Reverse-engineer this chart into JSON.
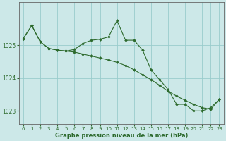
{
  "line1_x": [
    0,
    1,
    2,
    3,
    4,
    5,
    6,
    7,
    8,
    9,
    10,
    11,
    12,
    13,
    14,
    15,
    16,
    17,
    18,
    19,
    20,
    21,
    22,
    23
  ],
  "line1_y": [
    1025.2,
    1025.6,
    1025.1,
    1024.9,
    1024.85,
    1024.82,
    1024.87,
    1025.05,
    1025.15,
    1025.18,
    1025.25,
    1025.75,
    1025.15,
    1025.15,
    1024.85,
    1024.25,
    1023.95,
    1023.65,
    1023.2,
    1023.2,
    1023.0,
    1023.0,
    1023.1,
    1023.35
  ],
  "line2_x": [
    0,
    1,
    2,
    3,
    4,
    5,
    6,
    7,
    8,
    9,
    10,
    11,
    12,
    13,
    14,
    15,
    16,
    17,
    18,
    19,
    20,
    21,
    22,
    23
  ],
  "line2_y": [
    1025.2,
    1025.6,
    1025.1,
    1024.9,
    1024.85,
    1024.82,
    1024.79,
    1024.73,
    1024.67,
    1024.61,
    1024.55,
    1024.48,
    1024.38,
    1024.25,
    1024.1,
    1023.95,
    1023.78,
    1023.6,
    1023.45,
    1023.32,
    1023.2,
    1023.1,
    1023.05,
    1023.35
  ],
  "color": "#2d6a2d",
  "bg_color": "#cce8e8",
  "grid_color": "#99cccc",
  "xlabel": "Graphe pression niveau de la mer (hPa)",
  "ylim": [
    1022.6,
    1026.3
  ],
  "xlim": [
    -0.5,
    23.5
  ],
  "yticks": [
    1023,
    1024,
    1025
  ],
  "xticks": [
    0,
    1,
    2,
    3,
    4,
    5,
    6,
    7,
    8,
    9,
    10,
    11,
    12,
    13,
    14,
    15,
    16,
    17,
    18,
    19,
    20,
    21,
    22,
    23
  ],
  "xtick_labels": [
    "0",
    "1",
    "2",
    "3",
    "4",
    "5",
    "6",
    "7",
    "8",
    "9",
    "10",
    "11",
    "12",
    "13",
    "14",
    "15",
    "16",
    "17",
    "18",
    "19",
    "20",
    "21",
    "22",
    "23"
  ]
}
